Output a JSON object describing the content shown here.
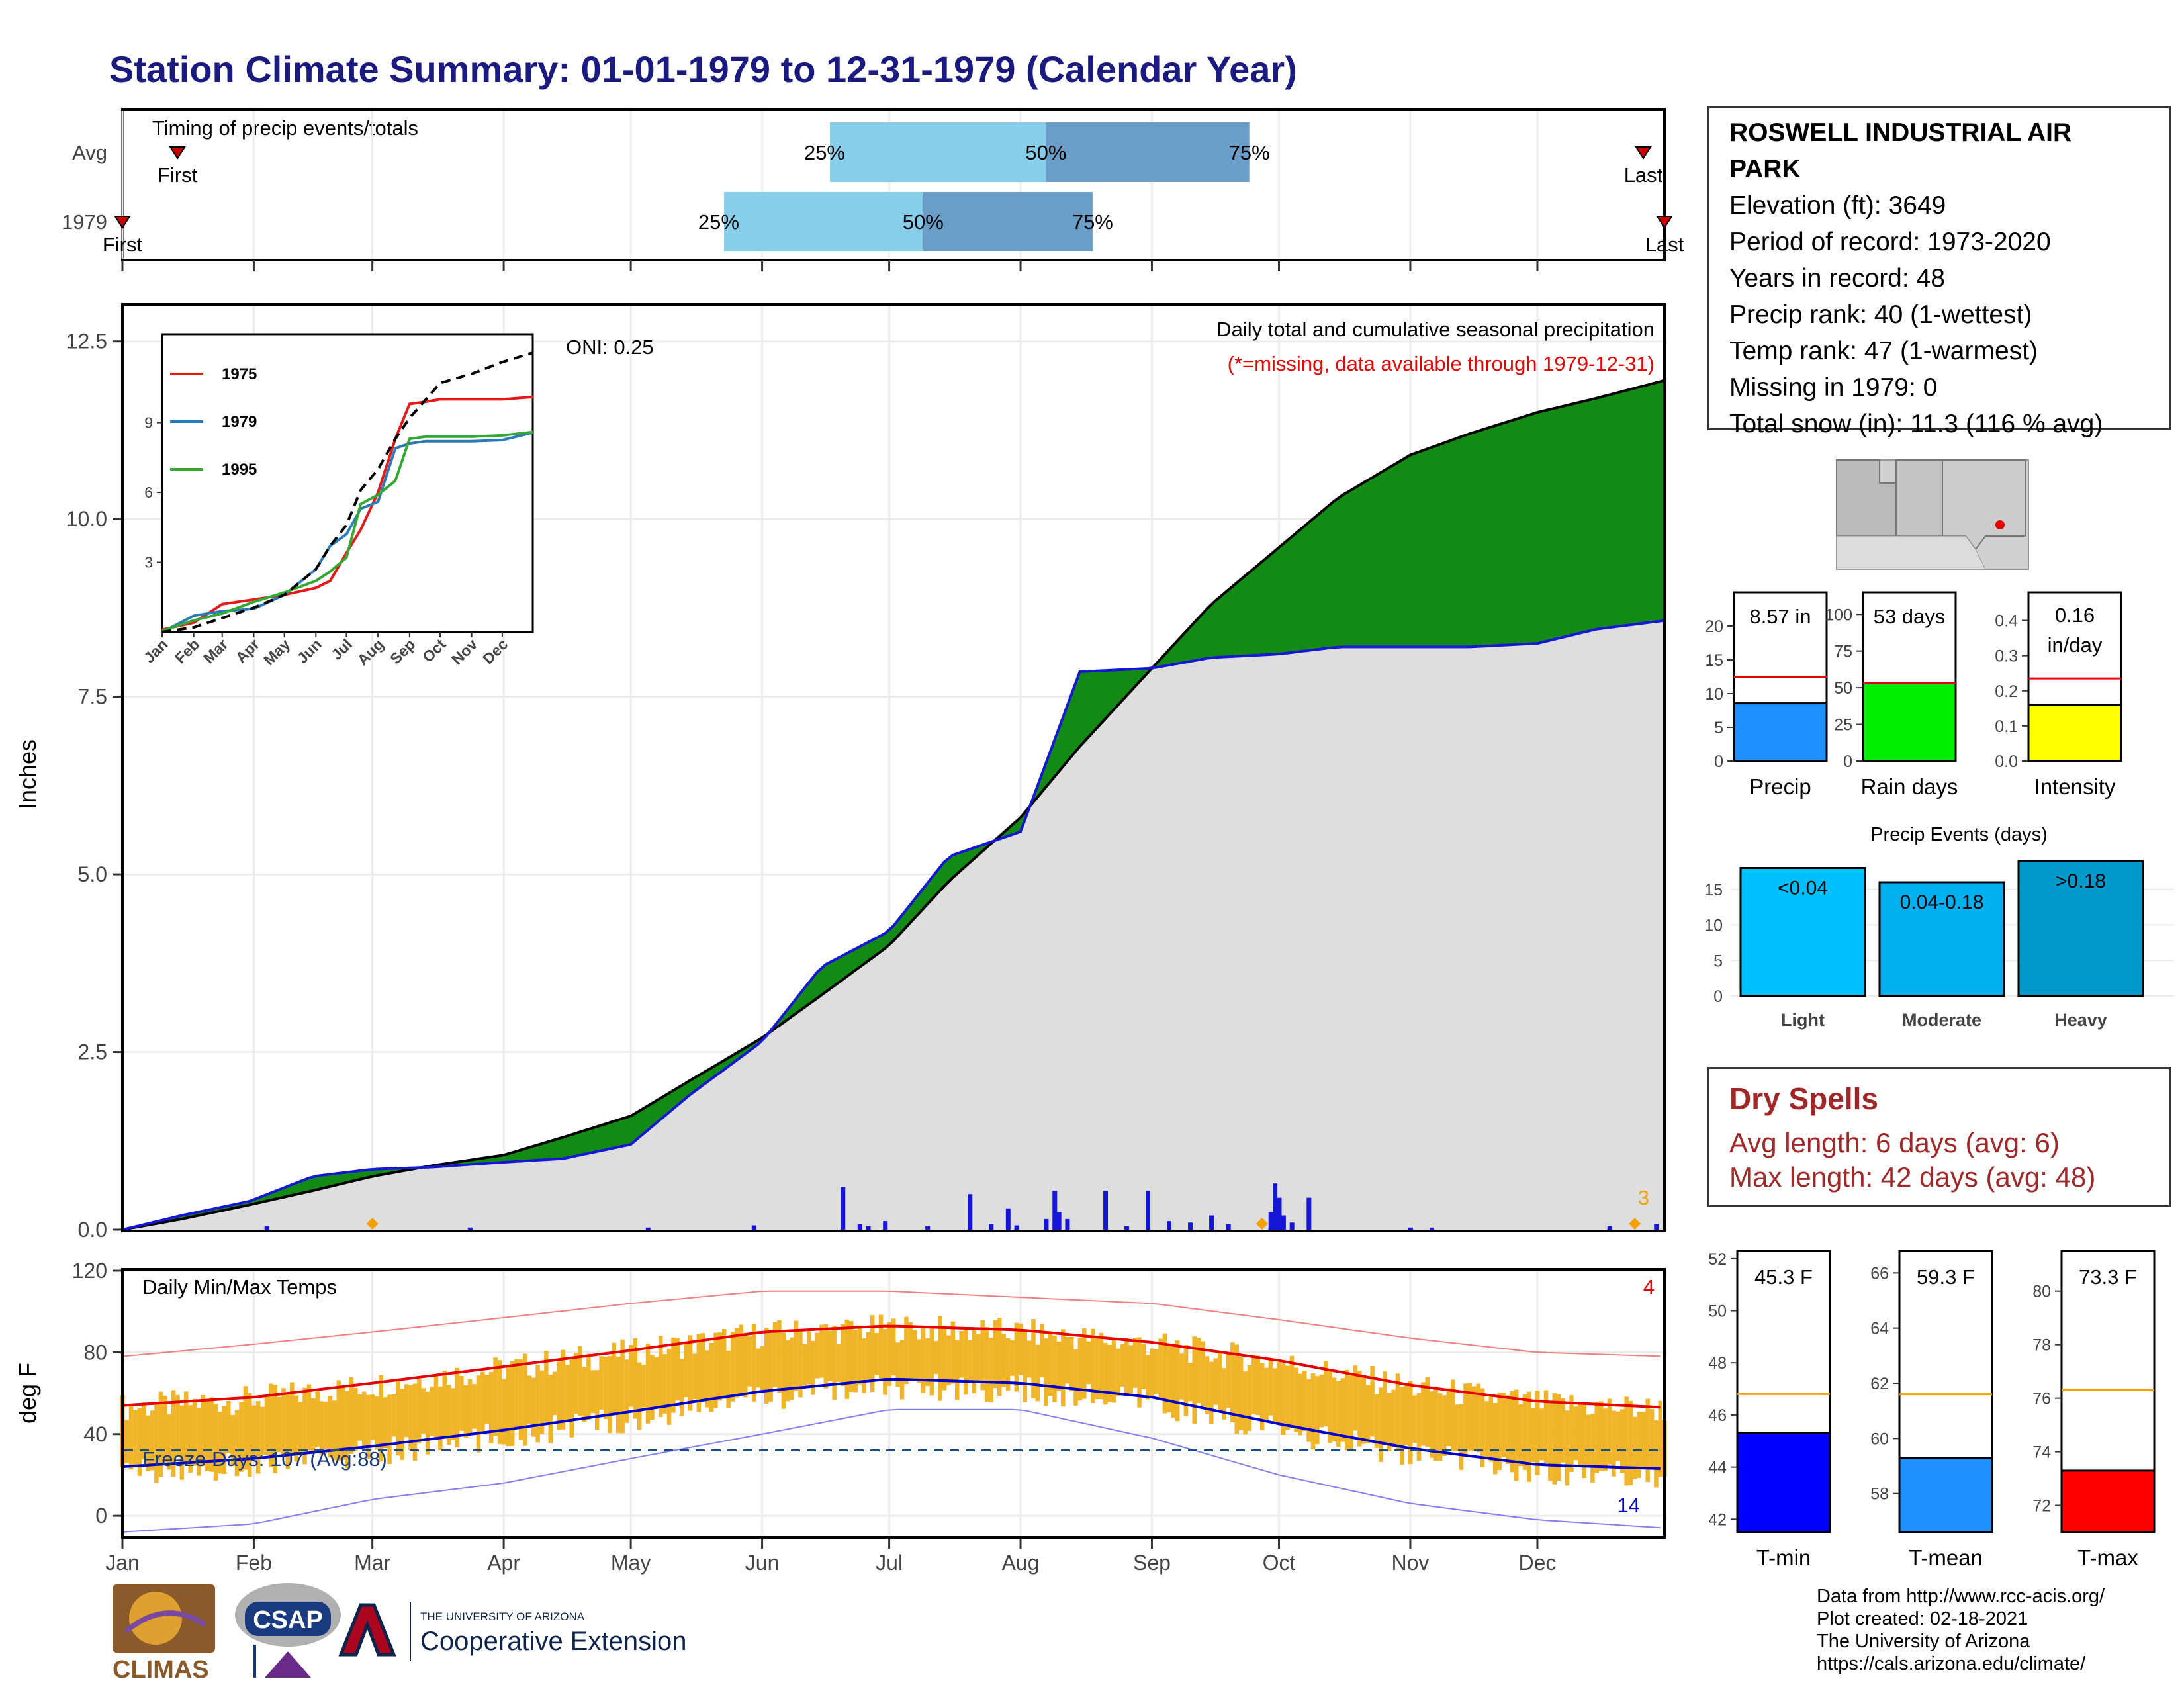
{
  "title": "Station Climate Summary: 01-01-1979 to 12-31-1979 (Calendar Year)",
  "station": {
    "name": "ROSWELL INDUSTRIAL AIR PARK",
    "elevation": "Elevation (ft): 3649",
    "period": "Period of record: 1973-2020",
    "years": "Years in record: 48",
    "precip_rank": "Precip rank: 40 (1-wettest)",
    "temp_rank": "Temp rank: 47 (1-warmest)",
    "missing": "Missing in 1979: 0",
    "snow": "Total snow (in): 11.3 (116 % avg)"
  },
  "dry_spells": {
    "title": "Dry Spells",
    "avg": "Avg length: 6 days (avg: 6)",
    "max": "Max length: 42 days (avg: 48)"
  },
  "footer": {
    "line1": "Data from http://www.rcc-acis.org/",
    "line2": "Plot created: 02-18-2021",
    "line3": "The University of Arizona",
    "line4": "https://cals.arizona.edu/climate/"
  },
  "logos": {
    "climas": "CLIMAS",
    "csap": "CSAP",
    "ua_small": "THE UNIVERSITY OF ARIZONA",
    "ua_big": "Cooperative Extension"
  },
  "colors": {
    "accent_title": "#1a1a80",
    "precip_fill": "#8b5a00",
    "precip_surplus": "#138a13",
    "precip_area": "#dedede",
    "obs_line": "#1616d6",
    "tmax_normal": "#e60000",
    "tmin_normal": "#0000cc",
    "temp_bars": "#f0b428",
    "q25_bar": "#87ceeb",
    "q50_bar": "#6a9ec8",
    "dry_spell": "#a02828"
  },
  "chart_data": [
    {
      "type": "bar",
      "name": "timing",
      "title": "Timing of precip events/totals",
      "rows": [
        {
          "label": "Avg",
          "first_label": "First",
          "last_label": "Last",
          "first_doy": 14,
          "last_doy": 360,
          "q25_doy": 168,
          "q50_doy": 219,
          "q75_doy": 267,
          "q25_label": "25%",
          "q50_label": "50%",
          "q75_label": "75%"
        },
        {
          "label": "1979",
          "first_label": "First",
          "last_label": "Last",
          "first_doy": 1,
          "last_doy": 365,
          "q25_doy": 143,
          "q50_doy": 190,
          "q75_doy": 230,
          "q25_label": "25%",
          "q50_label": "50%",
          "q75_label": "75%"
        }
      ]
    },
    {
      "type": "area",
      "name": "cumulative precipitation",
      "title": "Daily total and cumulative seasonal precipitation",
      "subtitle": "(*=missing, data available through 1979-12-31)",
      "annotation": "ONI: 0.25",
      "corner_count": "3",
      "ylabel": "Inches",
      "ylim": [
        0,
        13.0
      ],
      "yticks": [
        0.0,
        2.5,
        5.0,
        7.5,
        10.0,
        12.5
      ],
      "ytick_labels": [
        "0.0",
        "2.5",
        "5.0",
        "7.5",
        "10.0",
        "12.5"
      ],
      "x_doy": [
        1,
        15,
        31,
        46,
        60,
        74,
        91,
        105,
        121,
        135,
        152,
        166,
        182,
        196,
        213,
        227,
        244,
        258,
        274,
        288,
        305,
        319,
        335,
        349,
        365
      ],
      "series": [
        {
          "values": [
            0.0,
            0.15,
            0.35,
            0.55,
            0.75,
            0.9,
            1.05,
            1.3,
            1.6,
            2.1,
            2.7,
            3.3,
            4.0,
            4.9,
            5.8,
            6.8,
            7.9,
            8.8,
            9.6,
            10.3,
            10.9,
            11.2,
            11.5,
            11.7,
            11.95
          ]
        },
        {
          "values": [
            0.0,
            0.2,
            0.4,
            0.75,
            0.85,
            0.88,
            0.95,
            1.0,
            1.2,
            1.9,
            2.65,
            3.7,
            4.2,
            5.25,
            5.6,
            7.85,
            7.9,
            8.05,
            8.1,
            8.2,
            8.2,
            8.2,
            8.25,
            8.45,
            8.57
          ]
        }
      ],
      "daily_bars": [
        {
          "doy": 35,
          "v": 0.05
        },
        {
          "doy": 83,
          "v": 0.03
        },
        {
          "doy": 125,
          "v": 0.03
        },
        {
          "doy": 150,
          "v": 0.06
        },
        {
          "doy": 171,
          "v": 0.6
        },
        {
          "doy": 175,
          "v": 0.08
        },
        {
          "doy": 177,
          "v": 0.05
        },
        {
          "doy": 181,
          "v": 0.12
        },
        {
          "doy": 191,
          "v": 0.05
        },
        {
          "doy": 201,
          "v": 0.5
        },
        {
          "doy": 206,
          "v": 0.08
        },
        {
          "doy": 210,
          "v": 0.3
        },
        {
          "doy": 212,
          "v": 0.06
        },
        {
          "doy": 219,
          "v": 0.15
        },
        {
          "doy": 221,
          "v": 0.55
        },
        {
          "doy": 222,
          "v": 0.25
        },
        {
          "doy": 224,
          "v": 0.15
        },
        {
          "doy": 233,
          "v": 0.55
        },
        {
          "doy": 238,
          "v": 0.05
        },
        {
          "doy": 243,
          "v": 0.55
        },
        {
          "doy": 248,
          "v": 0.12
        },
        {
          "doy": 253,
          "v": 0.1
        },
        {
          "doy": 258,
          "v": 0.2
        },
        {
          "doy": 262,
          "v": 0.08
        },
        {
          "doy": 272,
          "v": 0.25
        },
        {
          "doy": 273,
          "v": 0.65
        },
        {
          "doy": 274,
          "v": 0.45
        },
        {
          "doy": 275,
          "v": 0.2
        },
        {
          "doy": 277,
          "v": 0.1
        },
        {
          "doy": 281,
          "v": 0.45
        },
        {
          "doy": 305,
          "v": 0.03
        },
        {
          "doy": 310,
          "v": 0.03
        },
        {
          "doy": 352,
          "v": 0.05
        },
        {
          "doy": 363,
          "v": 0.08
        }
      ]
    },
    {
      "type": "line",
      "name": "analog years inset",
      "xtick_labels": [
        "Jan",
        "Feb",
        "Mar",
        "Apr",
        "May",
        "Jun",
        "Jul",
        "Aug",
        "Sep",
        "Oct",
        "Nov",
        "Dec"
      ],
      "yticks": [
        3,
        6,
        9
      ],
      "ylim": [
        0,
        12.8
      ],
      "x_doy": [
        1,
        32,
        60,
        91,
        121,
        152,
        166,
        182,
        196,
        213,
        230,
        244,
        260,
        274,
        305,
        335,
        365
      ],
      "series": [
        {
          "name": "1975",
          "color": "#e61919",
          "values": [
            0.1,
            0.4,
            1.2,
            1.4,
            1.6,
            1.9,
            2.2,
            3.4,
            4.4,
            6.0,
            8.3,
            9.8,
            9.9,
            10.0,
            10.0,
            10.0,
            10.1
          ]
        },
        {
          "name": "1979",
          "color": "#2b7bb9",
          "values": [
            0.0,
            0.7,
            0.9,
            1.0,
            1.6,
            2.7,
            3.7,
            4.2,
            5.3,
            5.6,
            7.9,
            8.1,
            8.2,
            8.2,
            8.2,
            8.25,
            8.57
          ]
        },
        {
          "name": "1995",
          "color": "#33a833",
          "values": [
            0.05,
            0.5,
            0.8,
            1.3,
            1.7,
            2.2,
            2.6,
            3.2,
            5.5,
            5.9,
            6.5,
            8.3,
            8.4,
            8.4,
            8.4,
            8.45,
            8.6
          ]
        },
        {
          "name": "",
          "color": "#000000",
          "values": [
            0.0,
            0.2,
            0.6,
            1.05,
            1.6,
            2.7,
            3.7,
            4.6,
            6.1,
            7.0,
            8.3,
            9.2,
            10.0,
            10.7,
            11.1,
            11.6,
            12.0
          ]
        }
      ]
    },
    {
      "type": "line",
      "name": "daily temperatures",
      "title": "Daily Min/Max Temps",
      "ylabel": "deg F",
      "ylim": [
        -10,
        120
      ],
      "yticks": [
        0,
        40,
        80,
        120
      ],
      "freeze_label": "Freeze Days: 107 (Avg:88)",
      "freeze_line": 32,
      "top_right_count": "4",
      "bottom_right_count": "14",
      "xtick_labels": [
        "Jan",
        "Feb",
        "Mar",
        "Apr",
        "May",
        "Jun",
        "Jul",
        "Aug",
        "Sep",
        "Oct",
        "Nov",
        "Dec"
      ],
      "normal_high": {
        "doy": [
          1,
          32,
          60,
          91,
          121,
          152,
          182,
          213,
          244,
          274,
          305,
          335,
          365
        ],
        "values": [
          54,
          58,
          65,
          73,
          81,
          90,
          93,
          91,
          85,
          76,
          64,
          56,
          53
        ]
      },
      "normal_low": {
        "doy": [
          1,
          32,
          60,
          91,
          121,
          152,
          182,
          213,
          244,
          274,
          305,
          335,
          365
        ],
        "values": [
          24,
          28,
          34,
          42,
          51,
          61,
          67,
          65,
          58,
          45,
          33,
          25,
          23
        ]
      },
      "record_high": {
        "doy": [
          1,
          32,
          60,
          91,
          121,
          152,
          182,
          213,
          244,
          274,
          305,
          335,
          365
        ],
        "values": [
          78,
          84,
          90,
          97,
          104,
          110,
          110,
          107,
          104,
          96,
          87,
          80,
          78
        ]
      },
      "record_low": {
        "doy": [
          1,
          32,
          60,
          91,
          121,
          152,
          182,
          213,
          244,
          274,
          305,
          335,
          365
        ],
        "values": [
          -8,
          -4,
          8,
          16,
          28,
          40,
          52,
          52,
          38,
          20,
          6,
          -2,
          -6
        ]
      }
    },
    {
      "type": "bar",
      "name": "precip gauges",
      "panels": [
        {
          "label": "Precip",
          "value_label": "8.57 in",
          "value": 8.57,
          "normal": 12.5,
          "ylim": [
            0,
            25
          ],
          "yticks": [
            0,
            5,
            10,
            15,
            20
          ],
          "color": "#1e90ff"
        },
        {
          "label": "Rain days",
          "value_label": "53 days",
          "value": 53,
          "normal": 53,
          "ylim": [
            0,
            115
          ],
          "yticks": [
            0,
            25,
            50,
            75,
            100
          ],
          "color": "#00ee00"
        },
        {
          "label": "Intensity",
          "value_label_line1": "0.16",
          "value_label_line2": "in/day",
          "value": 0.16,
          "normal": 0.235,
          "ylim": [
            0,
            0.48
          ],
          "yticks": [
            0.0,
            0.1,
            0.2,
            0.3,
            0.4
          ],
          "ytick_labels": [
            "0.0",
            "0.1",
            "0.2",
            "0.3",
            "0.4"
          ],
          "color": "#ffff00"
        }
      ]
    },
    {
      "type": "bar",
      "name": "precip events",
      "title": "Precip Events (days)",
      "categories": [
        "Light",
        "Moderate",
        "Heavy"
      ],
      "bar_labels": [
        "<0.04",
        "0.04-0.18",
        ">0.18"
      ],
      "values": [
        18,
        16,
        19
      ],
      "colors": [
        "#00bfff",
        "#00b0f0",
        "#0099cc"
      ],
      "ylim": [
        0,
        20
      ],
      "yticks": [
        0,
        5,
        10,
        15
      ]
    },
    {
      "type": "bar",
      "name": "temperature gauges",
      "panels": [
        {
          "label": "T-min",
          "value_label": "45.3 F",
          "value": 45.3,
          "normal": 46.8,
          "ylim": [
            41.5,
            52.3
          ],
          "yticks": [
            42,
            44,
            46,
            48,
            50,
            52
          ],
          "color": "#0000ff"
        },
        {
          "label": "T-mean",
          "value_label": "59.3 F",
          "value": 59.3,
          "normal": 61.6,
          "ylim": [
            56.6,
            66.8
          ],
          "yticks": [
            58,
            60,
            62,
            64,
            66
          ],
          "color": "#1e90ff"
        },
        {
          "label": "T-max",
          "value_label": "73.3 F",
          "value": 73.3,
          "normal": 76.3,
          "ylim": [
            71.0,
            81.5
          ],
          "yticks": [
            72,
            74,
            76,
            78,
            80
          ],
          "color": "#ff0000"
        }
      ]
    }
  ]
}
